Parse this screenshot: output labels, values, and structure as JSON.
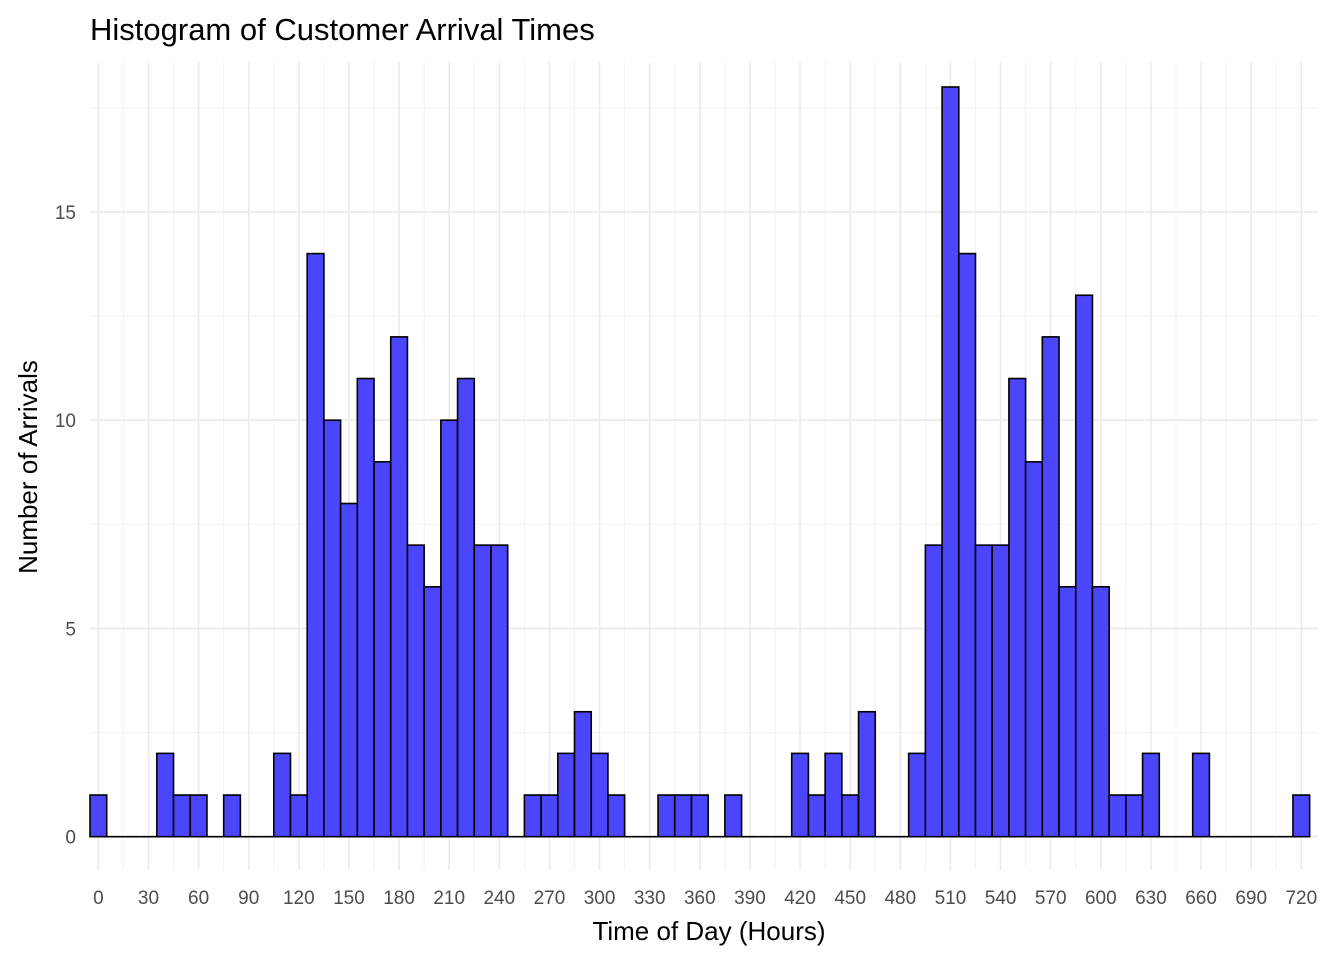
{
  "chart_data": {
    "type": "bar",
    "title": "Histogram of Customer Arrival Times",
    "xlabel": "Time of Day (Hours)",
    "ylabel": "Number of Arrivals",
    "xlim": [
      -5,
      730
    ],
    "ylim": [
      -0.8,
      18.6
    ],
    "x_ticks": [
      0,
      30,
      60,
      90,
      120,
      150,
      180,
      210,
      240,
      270,
      300,
      330,
      360,
      390,
      420,
      450,
      480,
      510,
      540,
      570,
      600,
      630,
      660,
      690,
      720
    ],
    "y_ticks": [
      0,
      5,
      10,
      15
    ],
    "bin_width": 10,
    "bin_centers": [
      0,
      10,
      20,
      30,
      40,
      50,
      60,
      70,
      80,
      90,
      100,
      110,
      120,
      130,
      140,
      150,
      160,
      170,
      180,
      190,
      200,
      210,
      220,
      230,
      240,
      250,
      260,
      270,
      280,
      290,
      300,
      310,
      320,
      330,
      340,
      350,
      360,
      370,
      380,
      390,
      400,
      410,
      420,
      430,
      440,
      450,
      460,
      470,
      480,
      490,
      500,
      510,
      520,
      530,
      540,
      550,
      560,
      570,
      580,
      590,
      600,
      610,
      620,
      630,
      640,
      650,
      660,
      670,
      680,
      690,
      700,
      710,
      720
    ],
    "values": [
      1,
      0,
      0,
      0,
      2,
      1,
      1,
      0,
      1,
      0,
      0,
      2,
      1,
      14,
      10,
      8,
      11,
      9,
      12,
      7,
      6,
      10,
      11,
      7,
      7,
      0,
      1,
      1,
      2,
      3,
      2,
      1,
      0,
      0,
      1,
      1,
      1,
      0,
      1,
      0,
      0,
      0,
      2,
      1,
      2,
      1,
      3,
      0,
      0,
      2,
      7,
      18,
      14,
      7,
      7,
      11,
      9,
      12,
      6,
      13,
      6,
      1,
      1,
      2,
      0,
      0,
      2,
      0,
      0,
      0,
      0,
      0,
      1
    ],
    "grid": true,
    "bar_fill": "#4b45fb",
    "bar_outline": "#000000"
  }
}
